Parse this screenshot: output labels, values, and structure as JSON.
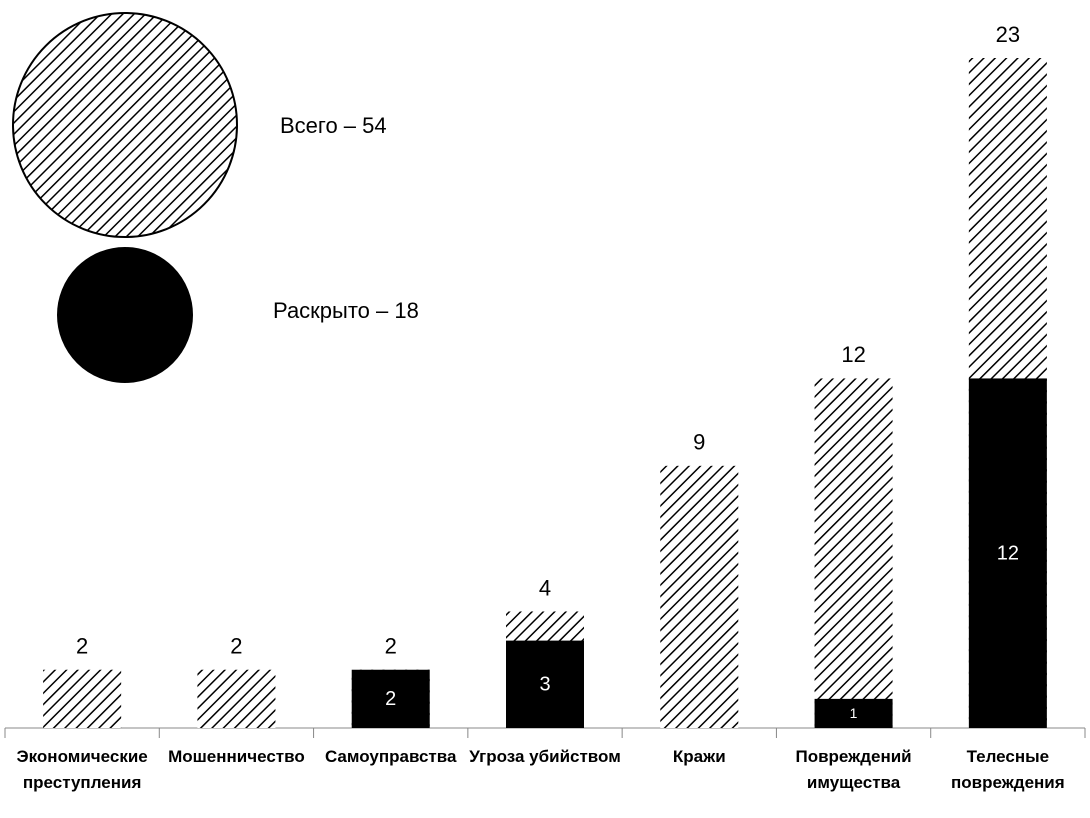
{
  "chart_data": {
    "type": "bar",
    "categories": [
      "Экономические преступления",
      "Мошенничество",
      "Самоуправства",
      "Угроза убийством",
      "Кражи",
      "Повреждений имущества",
      "Телесные повреждения"
    ],
    "series": [
      {
        "name": "Всего – 54",
        "color": "#000000",
        "pattern": "diagonal-hatch",
        "values": [
          2,
          2,
          2,
          4,
          9,
          12,
          23
        ]
      },
      {
        "name": "Раскрыто – 18",
        "color": "#000000",
        "values": [
          0,
          0,
          2,
          3,
          0,
          1,
          12
        ]
      }
    ],
    "ylim": [
      0,
      23
    ]
  }
}
